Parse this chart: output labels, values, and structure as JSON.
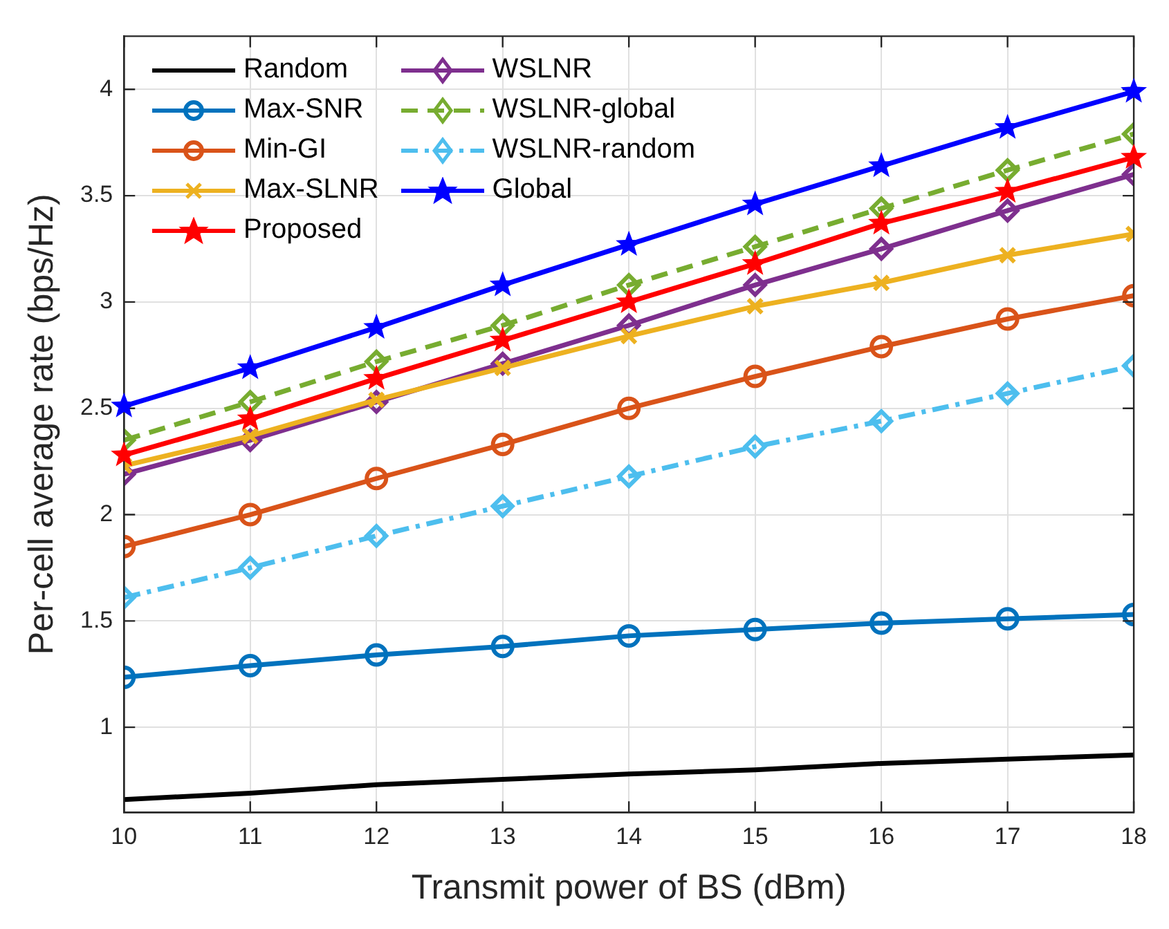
{
  "chart_data": {
    "type": "line",
    "xlabel": "Transmit power of BS (dBm)",
    "ylabel": "Per-cell average rate (bps/Hz)",
    "x": [
      10,
      11,
      12,
      13,
      14,
      15,
      16,
      17,
      18
    ],
    "xlim": [
      10,
      18
    ],
    "xticks": [
      10,
      11,
      12,
      13,
      14,
      15,
      16,
      17,
      18
    ],
    "ylim": [
      0.6,
      4.25
    ],
    "yticks": [
      1,
      1.5,
      2,
      2.5,
      3,
      3.5,
      4
    ],
    "grid": true,
    "legend": "top left",
    "series": [
      {
        "name": "Random",
        "color": "#000000",
        "marker": "none",
        "line_style": "solid",
        "values": [
          0.66,
          0.69,
          0.73,
          0.755,
          0.78,
          0.8,
          0.83,
          0.85,
          0.87
        ]
      },
      {
        "name": "Max-SNR",
        "color": "#0072bd",
        "marker": "circle",
        "line_style": "solid",
        "values": [
          1.235,
          1.29,
          1.34,
          1.38,
          1.43,
          1.46,
          1.49,
          1.51,
          1.53
        ]
      },
      {
        "name": "Min-GI",
        "color": "#d95319",
        "marker": "circle",
        "line_style": "solid",
        "values": [
          1.85,
          2.0,
          2.17,
          2.33,
          2.5,
          2.65,
          2.79,
          2.92,
          3.03
        ]
      },
      {
        "name": "Max-SLNR",
        "color": "#edb120",
        "marker": "cross",
        "line_style": "solid",
        "values": [
          2.23,
          2.37,
          2.54,
          2.69,
          2.84,
          2.98,
          3.09,
          3.22,
          3.32
        ]
      },
      {
        "name": "Proposed",
        "color": "#ff0000",
        "marker": "star",
        "line_style": "solid",
        "values": [
          2.28,
          2.45,
          2.64,
          2.82,
          3.0,
          3.18,
          3.37,
          3.52,
          3.68
        ]
      },
      {
        "name": "WSLNR",
        "color": "#7e2f8e",
        "marker": "diamond",
        "line_style": "solid",
        "values": [
          2.19,
          2.35,
          2.53,
          2.71,
          2.89,
          3.08,
          3.25,
          3.43,
          3.6
        ]
      },
      {
        "name": "WSLNR-global",
        "color": "#77ac30",
        "marker": "diamond",
        "line_style": "dashed",
        "values": [
          2.35,
          2.53,
          2.72,
          2.89,
          3.08,
          3.26,
          3.44,
          3.62,
          3.79
        ]
      },
      {
        "name": "WSLNR-random",
        "color": "#4dbeee",
        "marker": "diamond",
        "line_style": "dashdot",
        "values": [
          1.61,
          1.75,
          1.9,
          2.04,
          2.18,
          2.32,
          2.44,
          2.57,
          2.7
        ]
      },
      {
        "name": "Global",
        "color": "#0000ff",
        "marker": "star",
        "line_style": "solid",
        "values": [
          2.51,
          2.69,
          2.88,
          3.08,
          3.27,
          3.46,
          3.64,
          3.82,
          3.99
        ]
      }
    ]
  }
}
